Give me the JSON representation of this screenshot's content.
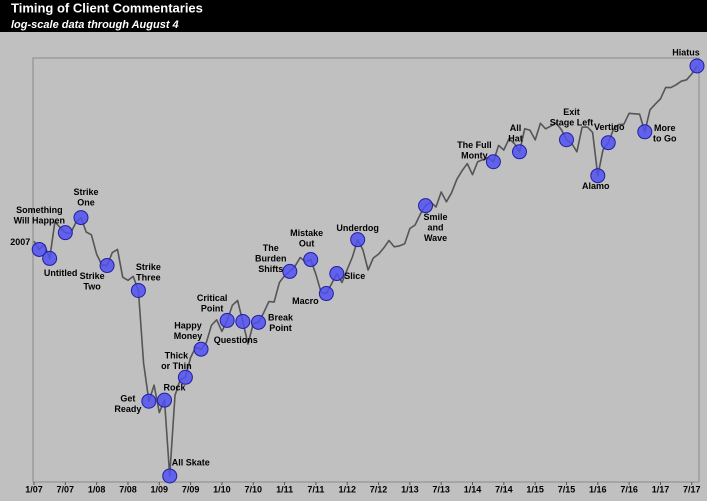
{
  "chart_data": {
    "type": "line",
    "title": "Timing of Client Commentaries",
    "subtitle": "log-scale data through August 4",
    "yscale": "log",
    "color": "#555555",
    "marker_color": "#5050f0",
    "xlim": [
      "2007-01",
      "2017-08"
    ],
    "ylim": [
      660,
      2600
    ],
    "xticks": [
      {
        "value": "2007-01",
        "label": "1/07"
      },
      {
        "value": "2007-07",
        "label": "7/07"
      },
      {
        "value": "2008-01",
        "label": "1/08"
      },
      {
        "value": "2008-07",
        "label": "7/08"
      },
      {
        "value": "2009-01",
        "label": "1/09"
      },
      {
        "value": "2009-07",
        "label": "7/09"
      },
      {
        "value": "2010-01",
        "label": "1/10"
      },
      {
        "value": "2010-07",
        "label": "7/10"
      },
      {
        "value": "2011-01",
        "label": "1/11"
      },
      {
        "value": "2011-07",
        "label": "7/11"
      },
      {
        "value": "2012-01",
        "label": "1/12"
      },
      {
        "value": "2012-07",
        "label": "7/12"
      },
      {
        "value": "2013-01",
        "label": "1/13"
      },
      {
        "value": "2013-07",
        "label": "7/13"
      },
      {
        "value": "2014-01",
        "label": "1/14"
      },
      {
        "value": "2014-07",
        "label": "7/14"
      },
      {
        "value": "2015-01",
        "label": "1/15"
      },
      {
        "value": "2015-07",
        "label": "7/15"
      },
      {
        "value": "2016-01",
        "label": "1/16"
      },
      {
        "value": "2016-07",
        "label": "7/16"
      },
      {
        "value": "2017-01",
        "label": "1/17"
      },
      {
        "value": "2017-07",
        "label": "7/17"
      }
    ],
    "x": [
      "2007-01",
      "2007-02",
      "2007-03",
      "2007-04",
      "2007-05",
      "2007-06",
      "2007-07",
      "2007-08",
      "2007-09",
      "2007-10",
      "2007-11",
      "2007-12",
      "2008-01",
      "2008-02",
      "2008-03",
      "2008-04",
      "2008-05",
      "2008-06",
      "2008-07",
      "2008-08",
      "2008-09",
      "2008-10",
      "2008-11",
      "2008-12",
      "2009-01",
      "2009-02",
      "2009-03",
      "2009-04",
      "2009-05",
      "2009-06",
      "2009-07",
      "2009-08",
      "2009-09",
      "2009-10",
      "2009-11",
      "2009-12",
      "2010-01",
      "2010-02",
      "2010-03",
      "2010-04",
      "2010-05",
      "2010-06",
      "2010-07",
      "2010-08",
      "2010-09",
      "2010-10",
      "2010-11",
      "2010-12",
      "2011-01",
      "2011-02",
      "2011-03",
      "2011-04",
      "2011-05",
      "2011-06",
      "2011-07",
      "2011-08",
      "2011-09",
      "2011-10",
      "2011-11",
      "2011-12",
      "2012-01",
      "2012-02",
      "2012-03",
      "2012-04",
      "2012-05",
      "2012-06",
      "2012-07",
      "2012-08",
      "2012-09",
      "2012-10",
      "2012-11",
      "2012-12",
      "2013-01",
      "2013-02",
      "2013-03",
      "2013-04",
      "2013-05",
      "2013-06",
      "2013-07",
      "2013-08",
      "2013-09",
      "2013-10",
      "2013-11",
      "2013-12",
      "2014-01",
      "2014-02",
      "2014-03",
      "2014-04",
      "2014-05",
      "2014-06",
      "2014-07",
      "2014-08",
      "2014-09",
      "2014-10",
      "2014-11",
      "2014-12",
      "2015-01",
      "2015-02",
      "2015-03",
      "2015-04",
      "2015-05",
      "2015-06",
      "2015-07",
      "2015-08",
      "2015-09",
      "2015-10",
      "2015-11",
      "2015-12",
      "2016-01",
      "2016-02",
      "2016-03",
      "2016-04",
      "2016-05",
      "2016-06",
      "2016-07",
      "2016-08",
      "2016-09",
      "2016-10",
      "2016-11",
      "2016-12",
      "2017-01",
      "2017-02",
      "2017-03",
      "2017-04",
      "2017-05",
      "2017-06",
      "2017-07",
      "2017-08"
    ],
    "values": [
      1438,
      1400,
      1421,
      1360,
      1531,
      1503,
      1478,
      1474,
      1527,
      1552,
      1481,
      1468,
      1379,
      1331,
      1329,
      1386,
      1400,
      1280,
      1267,
      1283,
      1226,
      969,
      857,
      903,
      826,
      860,
      673,
      873,
      919,
      926,
      987,
      1021,
      1014,
      1036,
      1096,
      1115,
      1074,
      1113,
      1169,
      1187,
      1109,
      1031,
      1102,
      1106,
      1141,
      1183,
      1181,
      1258,
      1286,
      1304,
      1326,
      1364,
      1345,
      1355,
      1292,
      1219,
      1214,
      1253,
      1295,
      1258,
      1312,
      1366,
      1445,
      1398,
      1310,
      1362,
      1379,
      1407,
      1441,
      1412,
      1416,
      1426,
      1498,
      1515,
      1569,
      1613,
      1631,
      1606,
      1686,
      1633,
      1682,
      1757,
      1806,
      1848,
      1783,
      1859,
      1872,
      1884,
      1859,
      1960,
      1931,
      2003,
      1972,
      1920,
      2068,
      2059,
      1995,
      2105,
      2068,
      2086,
      2107,
      2063,
      1996,
      1972,
      1920,
      2079,
      2080,
      2044,
      1777,
      1932,
      1977,
      2065,
      2097,
      2099,
      2174,
      2171,
      2168,
      2048,
      2199,
      2239,
      2279,
      2364,
      2363,
      2384,
      2412,
      2423,
      2470,
      2534
    ],
    "annotations": [
      {
        "label": [
          "2007"
        ],
        "x": "2007-02",
        "value": 1400
      },
      {
        "label": [
          "Untitled"
        ],
        "x": "2007-04",
        "value": 1360
      },
      {
        "label": [
          "Something",
          "Will Happen"
        ],
        "x": "2007-07",
        "value": 1478
      },
      {
        "label": [
          "Strike",
          "One"
        ],
        "x": "2007-10",
        "value": 1552
      },
      {
        "label": [
          "Strike",
          "Two"
        ],
        "x": "2008-03",
        "value": 1329
      },
      {
        "label": [
          "Strike",
          "Three"
        ],
        "x": "2008-09",
        "value": 1226
      },
      {
        "label": [
          "Get",
          "Ready"
        ],
        "x": "2008-11",
        "value": 857
      },
      {
        "label": [
          "Rock"
        ],
        "x": "2009-02",
        "value": 860
      },
      {
        "label": [
          "All Skate"
        ],
        "x": "2009-03",
        "value": 673
      },
      {
        "label": [
          "Thick",
          "or Thin"
        ],
        "x": "2009-06",
        "value": 926
      },
      {
        "label": [
          "Happy",
          "Money"
        ],
        "x": "2009-09",
        "value": 1014
      },
      {
        "label": [
          "Critical",
          "Point"
        ],
        "x": "2010-02",
        "value": 1113
      },
      {
        "label": [
          "Questions"
        ],
        "x": "2010-05",
        "value": 1109
      },
      {
        "label": [
          "Break",
          "Point"
        ],
        "x": "2010-08",
        "value": 1106
      },
      {
        "label": [
          "The",
          "Burden",
          "Shifts"
        ],
        "x": "2011-02",
        "value": 1304
      },
      {
        "label": [
          "Mistake",
          "Out"
        ],
        "x": "2011-06",
        "value": 1355
      },
      {
        "label": [
          "Macro"
        ],
        "x": "2011-09",
        "value": 1214
      },
      {
        "label": [
          "Slice"
        ],
        "x": "2011-11",
        "value": 1295
      },
      {
        "label": [
          "Underdog"
        ],
        "x": "2012-03",
        "value": 1445
      },
      {
        "label": [
          "Smile",
          "and",
          "Wave"
        ],
        "x": "2013-04",
        "value": 1613
      },
      {
        "label": [
          "The Full",
          "Monty"
        ],
        "x": "2014-05",
        "value": 1859
      },
      {
        "label": [
          "All",
          "Hat"
        ],
        "x": "2014-10",
        "value": 1920
      },
      {
        "label": [
          "Exit",
          "Stage Left"
        ],
        "x": "2015-07",
        "value": 1996
      },
      {
        "label": [
          "Alamo"
        ],
        "x": "2016-01",
        "value": 1777
      },
      {
        "label": [
          "Vertigo"
        ],
        "x": "2016-03",
        "value": 1977
      },
      {
        "label": [
          "More",
          "to Go"
        ],
        "x": "2016-10",
        "value": 2048
      },
      {
        "label": [
          "Hiatus"
        ],
        "x": "2017-08",
        "value": 2534
      }
    ]
  }
}
